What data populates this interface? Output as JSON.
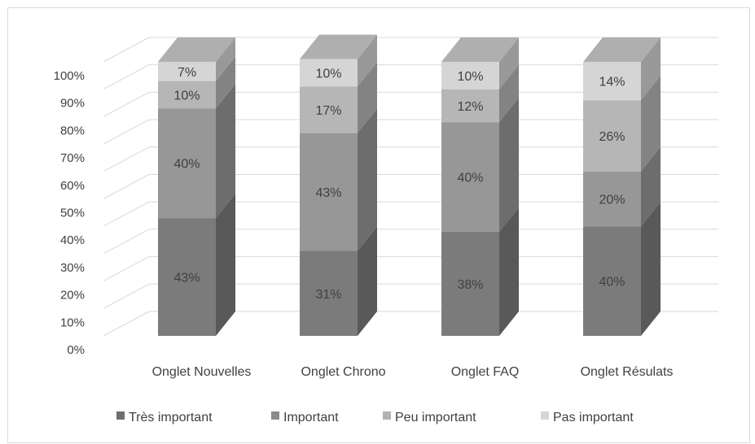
{
  "chart_data": {
    "type": "bar",
    "stacked": true,
    "three_d": true,
    "categories": [
      "Onglet Nouvelles",
      "Onglet Chrono",
      "Onglet FAQ",
      "Onglet Résulats"
    ],
    "series": [
      {
        "name": "Très important",
        "values": [
          43,
          31,
          38,
          40
        ],
        "color": "#7b7b7b",
        "labels": [
          "43%",
          "31%",
          "38%",
          "40%"
        ]
      },
      {
        "name": "Important",
        "values": [
          40,
          43,
          40,
          20
        ],
        "color": "#979797",
        "labels": [
          "40%",
          "43%",
          "40%",
          "20%"
        ]
      },
      {
        "name": "Peu important",
        "values": [
          10,
          17,
          12,
          26
        ],
        "color": "#b6b6b6",
        "labels": [
          "10%",
          "17%",
          "12%",
          "26%"
        ]
      },
      {
        "name": "Pas important",
        "values": [
          7,
          10,
          10,
          14
        ],
        "color": "#d5d5d5",
        "labels": [
          "7%",
          "10%",
          "10%",
          "14%"
        ]
      }
    ],
    "y_ticks": [
      "0%",
      "10%",
      "20%",
      "30%",
      "40%",
      "50%",
      "60%",
      "70%",
      "80%",
      "90%",
      "100%"
    ],
    "ylim": [
      0,
      100
    ],
    "grid": true,
    "legend_position": "bottom",
    "legend_colors": [
      "#6f6f6f",
      "#8c8c8c",
      "#b2b2b2",
      "#d5d5d5"
    ]
  }
}
